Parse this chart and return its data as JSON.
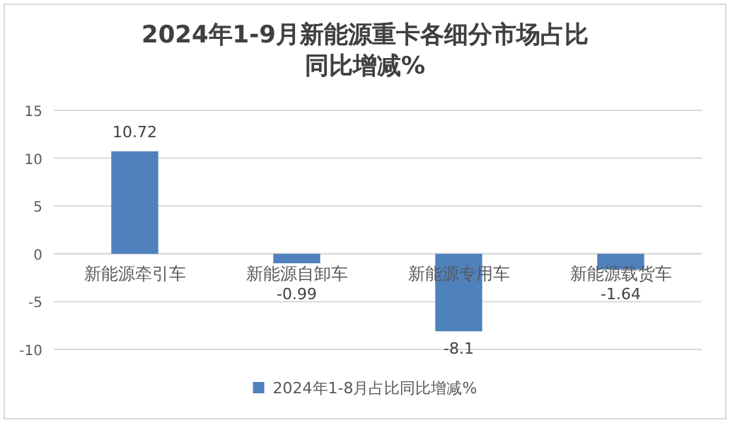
{
  "chart_data": {
    "type": "bar",
    "title": "2024年1-9月新能源重卡各细分市场占比同比增减%",
    "categories": [
      "新能源牵引车",
      "新能源自卸车",
      "新能源专用车",
      "新能源载货车"
    ],
    "series": [
      {
        "name": "2024年1-8月占比同比增减%",
        "color": "#4f81bd",
        "values": [
          10.72,
          -0.99,
          -8.1,
          -1.64
        ]
      }
    ],
    "ylim": [
      -10,
      15
    ],
    "yticks": [
      -10,
      -5,
      0,
      5,
      10,
      15
    ],
    "grid": "y",
    "legend": "bottom",
    "data_labels": true
  }
}
